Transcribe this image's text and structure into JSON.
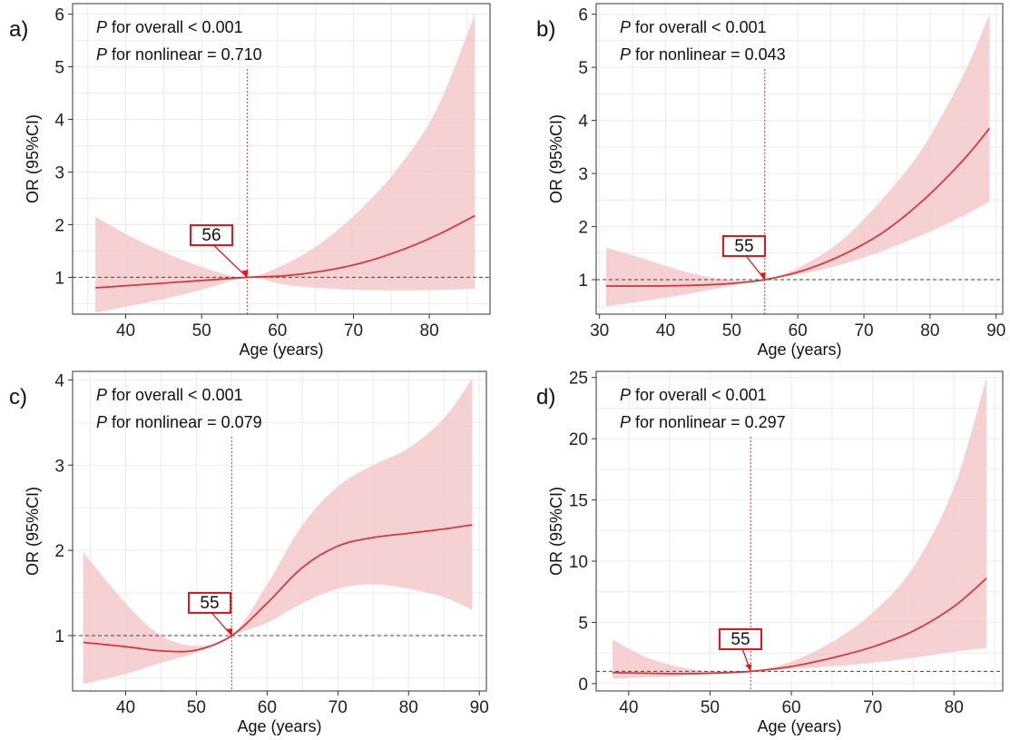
{
  "chart_data": [
    {
      "type": "line",
      "panel_label": "a)",
      "xlabel": "Age (years)",
      "ylabel": "OR (95%CI)",
      "xlim": [
        33,
        88
      ],
      "ylim": [
        0.3,
        6.2
      ],
      "xticks": [
        40,
        50,
        60,
        70,
        80
      ],
      "yticks": [
        1,
        2,
        3,
        4,
        5,
        6
      ],
      "annotations": {
        "p_overall": "for overall < 0.001",
        "p_nonlinear": "for nonlinear = 0.710",
        "p_symbol": "P"
      },
      "reference_line": 1,
      "knot": {
        "x": 56,
        "label": "56"
      },
      "series": [
        {
          "x": [
            36,
            41,
            46,
            51,
            56,
            61,
            66,
            71,
            76,
            81,
            86
          ],
          "values": [
            0.8,
            0.85,
            0.9,
            0.95,
            1.0,
            1.03,
            1.12,
            1.27,
            1.5,
            1.8,
            2.17
          ],
          "lower": [
            0.32,
            0.47,
            0.62,
            0.8,
            1.0,
            0.86,
            0.79,
            0.76,
            0.75,
            0.76,
            0.78
          ],
          "upper": [
            2.15,
            1.75,
            1.42,
            1.15,
            1.0,
            1.25,
            1.68,
            2.3,
            3.1,
            4.2,
            6.0
          ]
        }
      ],
      "grid": true
    },
    {
      "type": "line",
      "panel_label": "b)",
      "xlabel": "Age (years)",
      "ylabel": "OR (95%CI)",
      "xlim": [
        29.5,
        91
      ],
      "ylim": [
        0.35,
        6.2
      ],
      "xticks": [
        30,
        40,
        50,
        60,
        70,
        80,
        90
      ],
      "yticks": [
        1,
        2,
        3,
        4,
        5,
        6
      ],
      "annotations": {
        "p_overall": "for overall < 0.001",
        "p_nonlinear": "for nonlinear = 0.043",
        "p_symbol": "P"
      },
      "reference_line": 1,
      "knot": {
        "x": 55,
        "label": "55"
      },
      "series": [
        {
          "x": [
            31,
            37,
            43,
            49,
            55,
            61,
            67,
            73,
            79,
            85,
            89
          ],
          "values": [
            0.88,
            0.88,
            0.89,
            0.92,
            1.0,
            1.18,
            1.48,
            1.9,
            2.5,
            3.25,
            3.85
          ],
          "lower": [
            0.5,
            0.6,
            0.72,
            0.86,
            1.0,
            1.12,
            1.3,
            1.55,
            1.85,
            2.2,
            2.47
          ],
          "upper": [
            1.6,
            1.38,
            1.15,
            1.0,
            1.0,
            1.28,
            1.78,
            2.55,
            3.5,
            4.85,
            6.0
          ]
        }
      ],
      "grid": true
    },
    {
      "type": "line",
      "panel_label": "c)",
      "xlabel": "Age (years)",
      "ylabel": "OR (95%CI)",
      "xlim": [
        32.5,
        91
      ],
      "ylim": [
        0.35,
        4.1
      ],
      "xticks": [
        40,
        50,
        60,
        70,
        80,
        90
      ],
      "yticks": [
        1,
        2,
        3,
        4
      ],
      "annotations": {
        "p_overall": "for overall < 0.001",
        "p_nonlinear": "for nonlinear = 0.079",
        "p_symbol": "P"
      },
      "reference_line": 1,
      "knot": {
        "x": 55,
        "label": "55"
      },
      "series": [
        {
          "x": [
            34,
            40,
            45,
            50,
            55,
            60,
            65,
            70,
            75,
            80,
            85,
            89
          ],
          "values": [
            0.92,
            0.87,
            0.82,
            0.83,
            1.0,
            1.38,
            1.8,
            2.05,
            2.15,
            2.2,
            2.25,
            2.3
          ],
          "lower": [
            0.43,
            0.55,
            0.68,
            0.8,
            1.0,
            1.15,
            1.38,
            1.55,
            1.6,
            1.55,
            1.45,
            1.3
          ],
          "upper": [
            1.98,
            1.38,
            1.0,
            0.88,
            1.0,
            1.6,
            2.3,
            2.75,
            3.0,
            3.2,
            3.55,
            4.02
          ]
        }
      ],
      "grid": true
    },
    {
      "type": "line",
      "panel_label": "d)",
      "xlabel": "Age (years)",
      "ylabel": "OR (95%CI)",
      "xlim": [
        36,
        86
      ],
      "ylim": [
        -0.6,
        25.5
      ],
      "xticks": [
        40,
        50,
        60,
        70,
        80
      ],
      "yticks": [
        0,
        5,
        10,
        15,
        20,
        25
      ],
      "annotations": {
        "p_overall": "for overall < 0.001",
        "p_nonlinear": "for nonlinear = 0.297",
        "p_symbol": "P"
      },
      "reference_line": 1,
      "knot": {
        "x": 55,
        "label": "55"
      },
      "series": [
        {
          "x": [
            38,
            42,
            46,
            50,
            55,
            60,
            65,
            70,
            75,
            80,
            84
          ],
          "values": [
            0.9,
            0.85,
            0.82,
            0.85,
            1.0,
            1.4,
            2.1,
            3.0,
            4.3,
            6.3,
            8.6
          ],
          "lower": [
            0.4,
            0.5,
            0.6,
            0.8,
            1.0,
            1.2,
            1.4,
            1.7,
            2.1,
            2.6,
            2.9
          ],
          "upper": [
            3.6,
            2.2,
            1.4,
            1.0,
            1.0,
            1.8,
            3.4,
            5.8,
            9.5,
            16.0,
            25.0
          ]
        }
      ],
      "grid": true
    }
  ],
  "style": {
    "line_color": "#d43a3a",
    "band_color": "#f4c9cb",
    "ref_line_color": "#444444",
    "knot_box_color": "#e8141a",
    "grid_color": "#ebebeb",
    "axis_color": "#333333"
  }
}
